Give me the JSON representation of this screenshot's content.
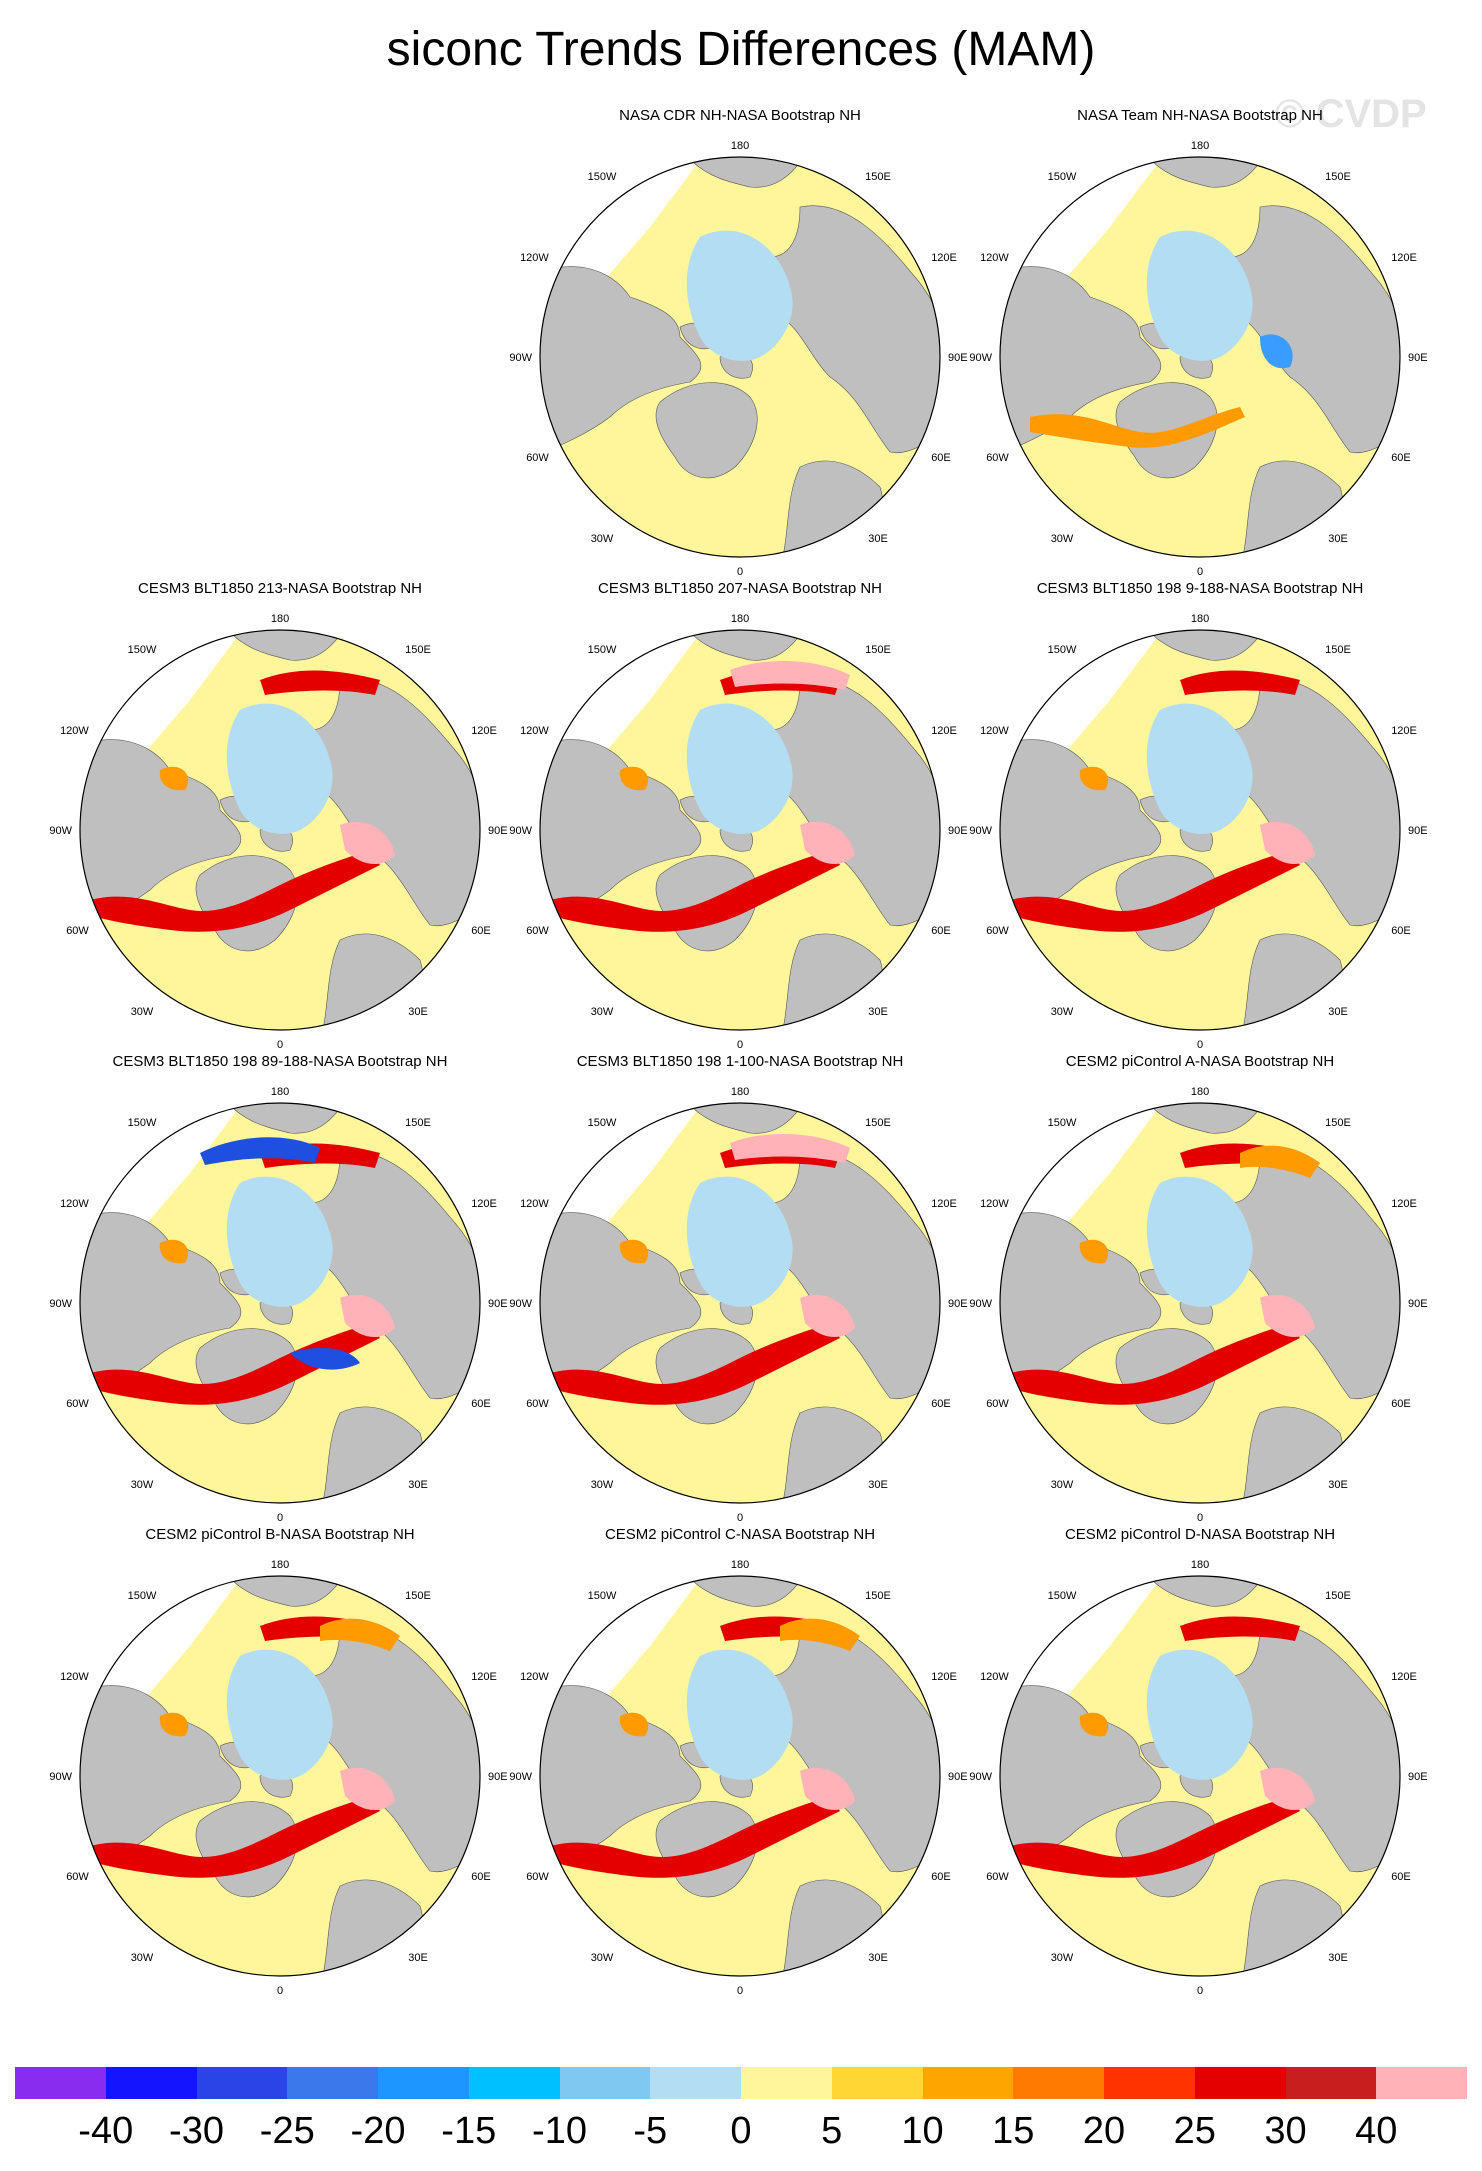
{
  "title": "siconc Trends Differences (MAM)",
  "watermark": "© CVDP",
  "colors": {
    "land": "#bfbfbf",
    "yellow": "#fff59a",
    "lightblue": "#b3ddf2",
    "blue": "#1f4fe0",
    "orange": "#ff9a00",
    "red": "#e40000",
    "pink": "#ffb3b8"
  },
  "lon_labels": {
    "top": "180",
    "tl": "150W",
    "tr": "150E",
    "ul": "120W",
    "ur": "120E",
    "ml": "90W",
    "mr": "90E",
    "ll": "60W",
    "lr": "60E",
    "bl": "30W",
    "br": "30E",
    "bottom": "0"
  },
  "panels": [
    {
      "title": "NASA CDR NH-NASA Bootstrap NH",
      "style": "obsA"
    },
    {
      "title": "NASA Team NH-NASA Bootstrap NH",
      "style": "obsB"
    },
    {
      "title": "CESM3 BLT1850 213-NASA Bootstrap NH",
      "style": "modelA"
    },
    {
      "title": "CESM3 BLT1850 207-NASA Bootstrap NH",
      "style": "modelB"
    },
    {
      "title": "CESM3 BLT1850 198 9-188-NASA Bootstrap NH",
      "style": "modelA"
    },
    {
      "title": "CESM3 BLT1850 198 89-188-NASA Bootstrap NH",
      "style": "modelBlue"
    },
    {
      "title": "CESM3 BLT1850 198 1-100-NASA Bootstrap NH",
      "style": "modelB"
    },
    {
      "title": "CESM2 piControl A-NASA Bootstrap NH",
      "style": "modelC"
    },
    {
      "title": "CESM2 piControl B-NASA Bootstrap NH",
      "style": "modelC"
    },
    {
      "title": "CESM2 piControl C-NASA Bootstrap NH",
      "style": "modelC"
    },
    {
      "title": "CESM2 piControl D-NASA Bootstrap NH",
      "style": "modelA"
    }
  ],
  "colorbar": {
    "colors": [
      "#8a2bf0",
      "#1414ff",
      "#2b44e8",
      "#3a78ec",
      "#1e96ff",
      "#00c0ff",
      "#7ec8f2",
      "#b3ddf2",
      "#fff59a",
      "#ffd633",
      "#ffa500",
      "#ff7a00",
      "#ff3300",
      "#e40000",
      "#c81e1e",
      "#ffb3b8"
    ],
    "ticks": [
      "-40",
      "-30",
      "-25",
      "-20",
      "-15",
      "-10",
      "-5",
      "0",
      "5",
      "10",
      "15",
      "20",
      "25",
      "30",
      "40"
    ]
  }
}
